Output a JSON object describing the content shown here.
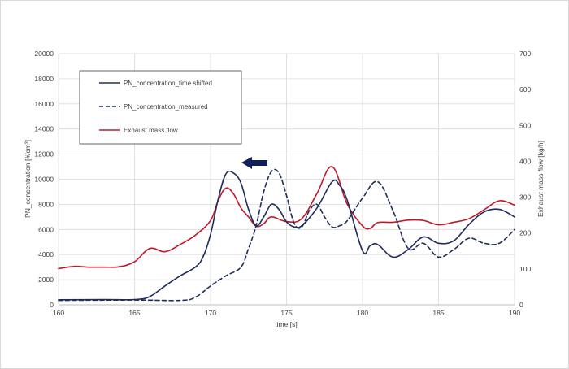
{
  "chart_data": {
    "type": "line",
    "title": "",
    "xlabel": "time [s]",
    "ylabel": "PN_concentration [#/cm³]",
    "y2label": "Exhaust mass flow [kg/h]",
    "xlim": [
      160,
      190
    ],
    "ylim": [
      0,
      20000
    ],
    "y2lim": [
      0,
      700
    ],
    "xticks": [
      160,
      165,
      170,
      175,
      180,
      185,
      190
    ],
    "yticks": [
      0,
      2000,
      4000,
      6000,
      8000,
      10000,
      12000,
      14000,
      16000,
      18000,
      20000
    ],
    "y2ticks": [
      0,
      100,
      200,
      300,
      400,
      500,
      600,
      700
    ],
    "grid": true,
    "legend_position": "top-left",
    "annotation": "left-pointing arrow near peak at t≈171.5 s indicating time shift",
    "series": [
      {
        "name": "PN_concentration_time shifted",
        "axis": "left",
        "color": "#1f2d5a",
        "dash": "solid",
        "x": [
          160,
          163,
          165,
          166,
          167,
          168,
          169,
          169.5,
          170,
          170.5,
          171,
          171.5,
          172,
          172.5,
          173,
          173.5,
          174,
          174.5,
          175,
          175.5,
          176,
          177,
          178,
          178.5,
          179,
          180,
          180.5,
          181,
          182,
          183,
          184,
          185,
          186,
          187,
          188,
          189,
          190
        ],
        "values": [
          400,
          420,
          420,
          650,
          1500,
          2300,
          3000,
          3800,
          5600,
          8400,
          10400,
          10500,
          9700,
          7600,
          6300,
          7000,
          8000,
          7600,
          6600,
          6200,
          6300,
          7700,
          9800,
          9500,
          8300,
          4300,
          4700,
          4800,
          3800,
          4400,
          5400,
          4900,
          5100,
          6400,
          7400,
          7600,
          7000
        ]
      },
      {
        "name": "PN_concentration_measured",
        "axis": "left",
        "color": "#1f2d5a",
        "dash": "dashed",
        "x": [
          160,
          165,
          168,
          169,
          170,
          171,
          172,
          172.5,
          173,
          173.5,
          174,
          174.5,
          175,
          175.5,
          176,
          176.5,
          177,
          177.5,
          178,
          178.5,
          179,
          180,
          181,
          182,
          183,
          184,
          185,
          186,
          187,
          188,
          189,
          190
        ],
        "values": [
          350,
          380,
          350,
          600,
          1500,
          2300,
          3000,
          4500,
          6300,
          9000,
          10600,
          10500,
          8700,
          6500,
          6200,
          7500,
          8000,
          7000,
          6200,
          6300,
          6700,
          8500,
          9800,
          7500,
          4500,
          4900,
          3800,
          4400,
          5300,
          4900,
          4900,
          6000
        ]
      },
      {
        "name": "Exhaust mass flow",
        "axis": "right",
        "color": "#c0182b",
        "dash": "solid",
        "x": [
          160,
          161,
          162,
          163,
          164,
          165,
          166,
          167,
          168,
          169,
          170,
          170.5,
          171,
          171.5,
          172,
          172.5,
          173,
          173.5,
          174,
          175,
          176,
          177,
          178,
          179,
          180,
          180.5,
          181,
          182,
          183,
          184,
          185,
          186,
          187,
          188,
          189,
          190
        ],
        "values": [
          101,
          107,
          105,
          105,
          106,
          120,
          157,
          148,
          168,
          194,
          235,
          290,
          325,
          310,
          270,
          245,
          219,
          226,
          245,
          232,
          240,
          310,
          385,
          280,
          220,
          213,
          229,
          230,
          236,
          235,
          223,
          230,
          240,
          265,
          290,
          278
        ]
      }
    ]
  }
}
